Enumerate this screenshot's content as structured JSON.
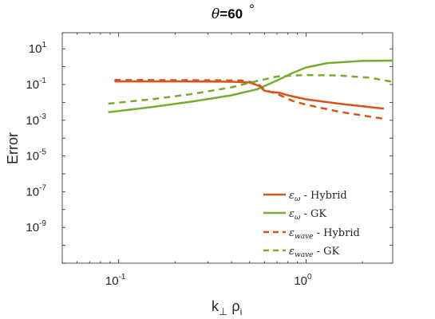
{
  "chart_data": {
    "type": "line",
    "title": "θ =60 °",
    "title_parts": {
      "symbol": "θ",
      "value": "=60",
      "unit": "°"
    },
    "xlabel": "k⊥ ρi",
    "xlabel_parts": {
      "k": "k",
      "perp": "⊥",
      "rho": "ρ",
      "sub": "i"
    },
    "ylabel": "Error",
    "xscale": "log",
    "yscale": "log",
    "xlim": [
      0.05,
      2.9
    ],
    "ylim": [
      1e-11,
      80
    ],
    "grid": false,
    "legend_position": "bottom-right",
    "x_ticks": [
      {
        "base": "10",
        "exp": "-1",
        "value": 0.1
      },
      {
        "base": "10",
        "exp": "0",
        "value": 1
      }
    ],
    "y_ticks": [
      {
        "base": "10",
        "exp": "1",
        "value": 10
      },
      {
        "base": "10",
        "exp": "-1",
        "value": 0.1
      },
      {
        "base": "10",
        "exp": "-3",
        "value": 0.001
      },
      {
        "base": "10",
        "exp": "-5",
        "value": 1e-05
      },
      {
        "base": "10",
        "exp": "-7",
        "value": 1e-07
      },
      {
        "base": "10",
        "exp": "-9",
        "value": 1e-09
      }
    ],
    "series": [
      {
        "name": "ε_ω - Hybrid",
        "legend": {
          "sym": "ε",
          "sub": "ω",
          "rest": " - Hybrid"
        },
        "color": "#d95319",
        "dash": "solid",
        "points": [
          [
            0.095,
            0.15
          ],
          [
            0.2,
            0.15
          ],
          [
            0.3,
            0.147
          ],
          [
            0.4,
            0.143
          ],
          [
            0.5,
            0.13
          ],
          [
            0.56,
            0.085
          ],
          [
            0.6,
            0.045
          ],
          [
            0.65,
            0.038
          ],
          [
            0.72,
            0.035
          ],
          [
            0.8,
            0.025
          ],
          [
            1.0,
            0.015
          ],
          [
            1.5,
            0.0085
          ],
          [
            2.6,
            0.0045
          ]
        ]
      },
      {
        "name": "ε_ω - GK",
        "legend": {
          "sym": "ε",
          "sub": "ω",
          "rest": " - GK"
        },
        "color": "#77ac30",
        "dash": "solid",
        "points": [
          [
            0.088,
            0.0028
          ],
          [
            0.15,
            0.0055
          ],
          [
            0.25,
            0.0115
          ],
          [
            0.4,
            0.025
          ],
          [
            0.55,
            0.055
          ],
          [
            0.7,
            0.17
          ],
          [
            0.85,
            0.45
          ],
          [
            1.0,
            0.9
          ],
          [
            1.3,
            1.6
          ],
          [
            2.0,
            2.1
          ],
          [
            2.9,
            2.2
          ]
        ]
      },
      {
        "name": "ε_wave - Hybrid",
        "legend": {
          "sym": "ε",
          "sub": "wave",
          "rest": " - Hybrid"
        },
        "color": "#d95319",
        "dash": "dashed",
        "points": [
          [
            0.095,
            0.18
          ],
          [
            0.3,
            0.175
          ],
          [
            0.45,
            0.17
          ],
          [
            0.55,
            0.12
          ],
          [
            0.6,
            0.05
          ],
          [
            0.7,
            0.03
          ],
          [
            0.85,
            0.012
          ],
          [
            1.0,
            0.0075
          ],
          [
            1.5,
            0.003
          ],
          [
            2.6,
            0.0012
          ]
        ]
      },
      {
        "name": "ε_wave - GK",
        "legend": {
          "sym": "ε",
          "sub": "wave",
          "rest": " - GK"
        },
        "color": "#77ac30",
        "dash": "dashed",
        "points": [
          [
            0.088,
            0.0085
          ],
          [
            0.15,
            0.015
          ],
          [
            0.25,
            0.03
          ],
          [
            0.4,
            0.07
          ],
          [
            0.55,
            0.16
          ],
          [
            0.7,
            0.28
          ],
          [
            0.85,
            0.32
          ],
          [
            1.0,
            0.34
          ],
          [
            1.5,
            0.32
          ],
          [
            2.2,
            0.24
          ],
          [
            2.9,
            0.14
          ]
        ]
      }
    ]
  }
}
